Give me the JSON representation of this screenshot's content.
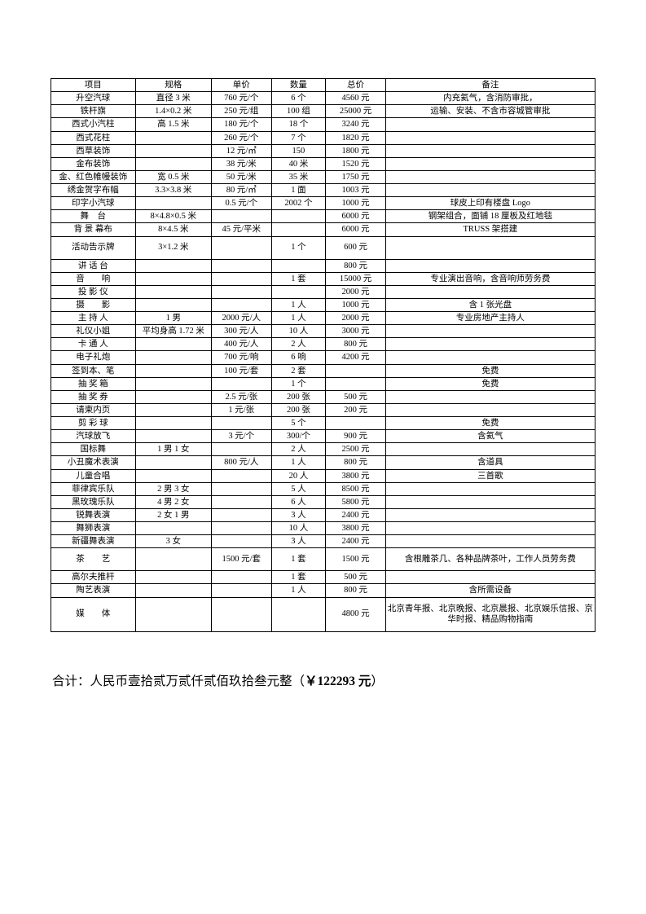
{
  "columns": [
    "项目",
    "规格",
    "单价",
    "数量",
    "总价",
    "备注"
  ],
  "rows": [
    [
      "升空汽球",
      "直径 3 米",
      "760 元/个",
      "6 个",
      "4560 元",
      "内充氦气，含消防审批，"
    ],
    [
      "铁杆旗",
      "1.4×0.2 米",
      "250 元/组",
      "100 组",
      "25000 元",
      "运输、安装、不含市容城管审批"
    ],
    [
      "西式小汽柱",
      "高 1.5 米",
      "180 元/个",
      "18 个",
      "3240 元",
      ""
    ],
    [
      "西式花柱",
      "",
      "260 元/个",
      "7 个",
      "1820 元",
      ""
    ],
    [
      "西草装饰",
      "",
      "12 元/㎡",
      "150",
      "1800 元",
      ""
    ],
    [
      "金布装饰",
      "",
      "38 元/米",
      "40 米",
      "1520 元",
      ""
    ],
    [
      "金、红色帷幔装饰",
      "宽 0.5 米",
      "50 元/米",
      "35 米",
      "1750 元",
      ""
    ],
    [
      "绣金贺字布幅",
      "3.3×3.8 米",
      "80 元/㎡",
      "1 面",
      "1003 元",
      ""
    ],
    [
      "印字小汽球",
      "",
      "0.5 元/个",
      "2002 个",
      "1000 元",
      "球皮上印有楼盘 Logo"
    ],
    [
      "舞　台",
      "8×4.8×0.5 米",
      "",
      "",
      "6000 元",
      "钢架组合，面铺 18 厘板及红地毯"
    ],
    [
      "背 景 幕布",
      "8×4.5 米",
      "45 元/平米",
      "",
      "6000 元",
      "TRUSS 架搭建"
    ],
    [
      "活动告示牌",
      "3×1.2 米",
      "",
      "1 个",
      "600 元",
      ""
    ],
    [
      "讲 话 台",
      "",
      "",
      "",
      "800 元",
      ""
    ],
    [
      "音　　响",
      "",
      "",
      "1 套",
      "15000 元",
      "专业演出音响，含音响师劳务费"
    ],
    [
      "投 影 仪",
      "",
      "",
      "",
      "2000 元",
      ""
    ],
    [
      "摄　　影",
      "",
      "",
      "1 人",
      "1000 元",
      "含 1 张光盘"
    ],
    [
      "主 持 人",
      "1 男",
      "2000 元/人",
      "1 人",
      "2000 元",
      "专业房地产主持人"
    ],
    [
      "礼仪小姐",
      "平均身高 1.72 米",
      "300 元/人",
      "10 人",
      "3000 元",
      ""
    ],
    [
      "卡 通 人",
      "",
      "400 元/人",
      "2 人",
      "800 元",
      ""
    ],
    [
      "电子礼炮",
      "",
      "700 元/响",
      "6 响",
      "4200 元",
      ""
    ],
    [
      "签到本、笔",
      "",
      "100 元/套",
      "2 套",
      "",
      "免费"
    ],
    [
      "抽 奖 箱",
      "",
      "",
      "1 个",
      "",
      "免费"
    ],
    [
      "抽 奖 券",
      "",
      "2.5 元/张",
      "200 张",
      "500 元",
      ""
    ],
    [
      "请柬内页",
      "",
      "1 元/张",
      "200 张",
      "200 元",
      ""
    ],
    [
      "剪 彩 球",
      "",
      "",
      "5 个",
      "",
      "免费"
    ],
    [
      "汽球放飞",
      "",
      "3 元/个",
      "300/个",
      "900 元",
      "含氦气"
    ],
    [
      "国标舞",
      "1 男 1 女",
      "",
      "2 人",
      "2500 元",
      ""
    ],
    [
      "小丑魔术表演",
      "",
      "800 元/人",
      "1 人",
      "800 元",
      "含道具"
    ],
    [
      "儿童合唱",
      "",
      "",
      "20 人",
      "3800 元",
      "三首歌"
    ],
    [
      "菲律宾乐队",
      "2 男 3 女",
      "",
      "5 人",
      "8500 元",
      ""
    ],
    [
      "黑玫瑰乐队",
      "4 男 2 女",
      "",
      "6 人",
      "5800 元",
      ""
    ],
    [
      "锐舞表演",
      "2 女 1 男",
      "",
      "3 人",
      "2400 元",
      ""
    ],
    [
      "舞狮表演",
      "",
      "",
      "10 人",
      "3800 元",
      ""
    ],
    [
      "新疆舞表演",
      "3 女",
      "",
      "3 人",
      "2400 元",
      ""
    ],
    [
      "茶　　艺",
      "",
      "1500 元/套",
      "1 套",
      "1500 元",
      "含根雕茶几、各种品牌茶叶，工作人员劳务费"
    ],
    [
      "高尔夫推杆",
      "",
      "",
      "1 套",
      "500 元",
      ""
    ],
    [
      "陶艺表演",
      "",
      "",
      "1 人",
      "800 元",
      "含所需设备"
    ],
    [
      "媒　　体",
      "",
      "",
      "",
      "4800 元",
      "北京青年报、北京晚报、北京晨报、北京娱乐信报、京华时报、精品购物指南"
    ]
  ],
  "rowHeights": {
    "11": 28,
    "34": 28,
    "37": 42
  },
  "summaryPrefix": "合计：人民币壹拾贰万贰仟贰佰玖拾叁元整（",
  "summaryAmount": "￥122293 元",
  "summarySuffix": "）"
}
